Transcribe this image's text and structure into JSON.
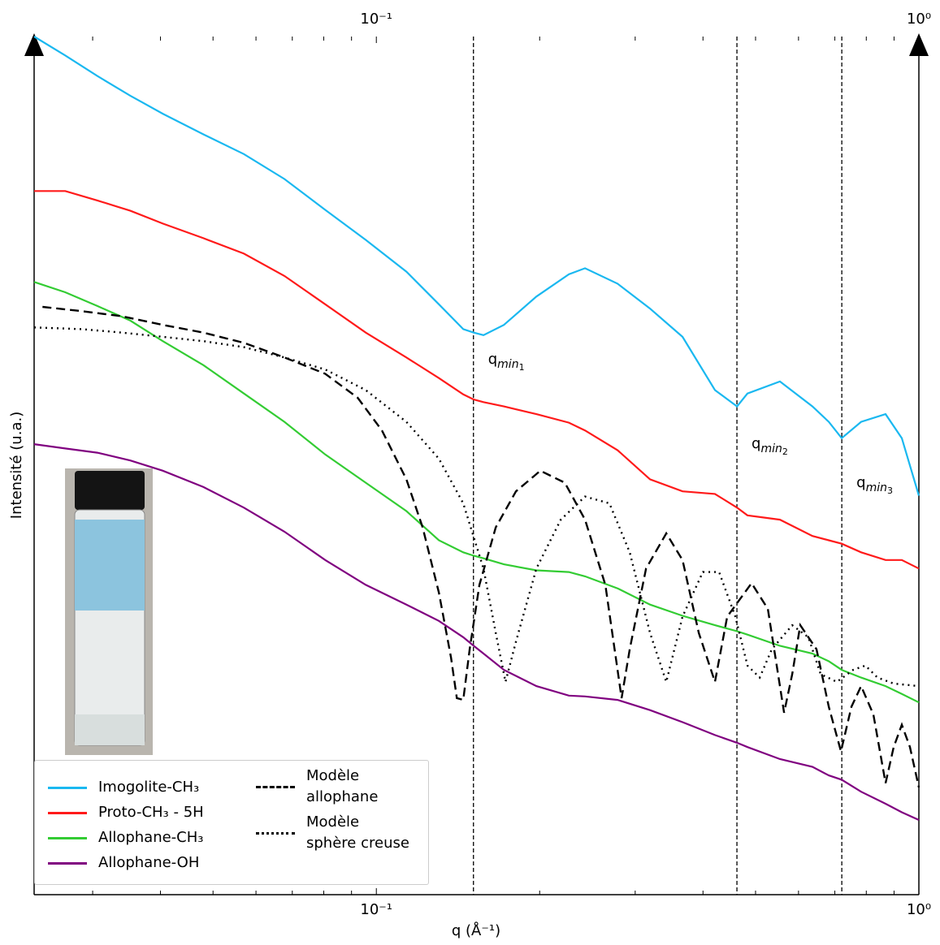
{
  "chart_data": {
    "type": "line",
    "xlabel": "q (Å⁻¹)",
    "ylabel": "Intensité (u.a.)",
    "xscale": "log",
    "xlim": [
      0.0234,
      1.0
    ],
    "ylim": [
      0,
      100
    ],
    "xticks": [
      {
        "value": 0.1,
        "label": "10⁻¹"
      },
      {
        "value": 1.0,
        "label": "10⁰"
      }
    ],
    "xminorticks": [
      0.03,
      0.04,
      0.05,
      0.06,
      0.07,
      0.08,
      0.09,
      0.2,
      0.3,
      0.4,
      0.5,
      0.6,
      0.7,
      0.8,
      0.9
    ],
    "x": [
      0.0234,
      0.0267,
      0.0306,
      0.0352,
      0.0404,
      0.048,
      0.057,
      0.0677,
      0.0805,
      0.0956,
      0.1136,
      0.1304,
      0.1446,
      0.1512,
      0.1576,
      0.1718,
      0.1972,
      0.2264,
      0.2425,
      0.2783,
      0.3195,
      0.3667,
      0.4209,
      0.4622,
      0.4831,
      0.5546,
      0.6366,
      0.6823,
      0.7207,
      0.7826,
      0.8683,
      0.9303,
      1.0
    ],
    "series": [
      {
        "name": "Imogolite-CH₃",
        "color": "#1ab8f0",
        "dash": "solid",
        "values": [
          100.0,
          97.8,
          95.4,
          93.1,
          91.0,
          88.6,
          86.3,
          83.4,
          79.8,
          76.3,
          72.6,
          68.8,
          65.9,
          65.5,
          65.2,
          66.4,
          69.7,
          72.3,
          73.0,
          71.2,
          68.3,
          65.0,
          58.8,
          56.9,
          58.4,
          59.8,
          56.9,
          55.1,
          53.2,
          55.1,
          56.0,
          53.2,
          46.5
        ]
      },
      {
        "name": "Proto-CH₃ - 5H",
        "color": "#ff1a1a",
        "dash": "solid",
        "values": [
          82.0,
          82.0,
          80.9,
          79.7,
          78.2,
          76.5,
          74.7,
          72.1,
          68.8,
          65.5,
          62.6,
          60.2,
          58.3,
          57.7,
          57.4,
          56.9,
          56.0,
          55.0,
          54.1,
          51.8,
          48.4,
          47.0,
          46.7,
          45.1,
          44.2,
          43.7,
          41.8,
          41.3,
          40.9,
          39.9,
          39.0,
          39.0,
          38.0
        ]
      },
      {
        "name": "Allophane-CH₃",
        "color": "#33cc33",
        "dash": "solid",
        "values": [
          71.4,
          70.2,
          68.6,
          66.9,
          64.5,
          61.7,
          58.4,
          55.1,
          51.3,
          48.0,
          44.7,
          41.3,
          39.9,
          39.5,
          39.2,
          38.5,
          37.8,
          37.6,
          37.1,
          35.7,
          33.8,
          32.5,
          31.4,
          30.7,
          30.3,
          29.0,
          28.1,
          27.2,
          26.2,
          25.3,
          24.3,
          23.4,
          22.4
        ]
      },
      {
        "name": "Allophane-OH",
        "color": "#800080",
        "dash": "solid",
        "values": [
          52.5,
          52.0,
          51.5,
          50.6,
          49.4,
          47.5,
          45.1,
          42.3,
          39.0,
          36.1,
          33.8,
          31.9,
          30.0,
          29.0,
          28.1,
          26.2,
          24.3,
          23.2,
          23.1,
          22.7,
          21.5,
          20.1,
          18.6,
          17.7,
          17.2,
          15.8,
          14.9,
          13.9,
          13.4,
          12.0,
          10.6,
          9.6,
          8.7
        ]
      },
      {
        "name": "Modèle\nallophane",
        "color": "#000000",
        "dash": "dashed",
        "x": [
          0.02425,
          0.02862,
          0.034,
          0.0404,
          0.048,
          0.057,
          0.0677,
          0.0805,
          0.0924,
          0.1024,
          0.1136,
          0.1217,
          0.1304,
          0.1373,
          0.1407,
          0.1446,
          0.1486,
          0.1549,
          0.166,
          0.1809,
          0.2006,
          0.2225,
          0.2425,
          0.2643,
          0.2832,
          0.2931,
          0.3141,
          0.3423,
          0.3667,
          0.3929,
          0.4209,
          0.4434,
          0.4917,
          0.5268,
          0.5643,
          0.5841,
          0.6045,
          0.6477,
          0.6823,
          0.7184,
          0.7512,
          0.7826,
          0.8245,
          0.8683,
          0.8987,
          0.9303,
          0.9627,
          1.0
        ],
        "values": [
          68.5,
          68.0,
          67.4,
          66.4,
          65.5,
          64.3,
          62.6,
          60.7,
          57.9,
          54.1,
          48.4,
          42.8,
          35.2,
          27.6,
          22.9,
          22.7,
          28.6,
          36.1,
          42.8,
          47.0,
          49.4,
          48.0,
          43.7,
          36.1,
          22.9,
          28.6,
          38.0,
          42.1,
          39.0,
          30.5,
          24.8,
          32.4,
          36.3,
          33.3,
          21.2,
          25.7,
          31.4,
          28.6,
          21.9,
          16.7,
          21.9,
          24.3,
          21.0,
          13.0,
          17.2,
          19.8,
          17.2,
          12.5
        ]
      },
      {
        "name": "Modèle\nsphère creuse",
        "color": "#000000",
        "dash": "dotted",
        "x": [
          0.0234,
          0.0286,
          0.034,
          0.0404,
          0.048,
          0.057,
          0.0677,
          0.0805,
          0.0956,
          0.1136,
          0.1304,
          0.1446,
          0.1576,
          0.166,
          0.173,
          0.1809,
          0.1972,
          0.2187,
          0.2425,
          0.2689,
          0.2931,
          0.3195,
          0.3423,
          0.3667,
          0.3998,
          0.4283,
          0.4589,
          0.4831,
          0.5089,
          0.5358,
          0.5841,
          0.6257,
          0.659,
          0.7061,
          0.7565,
          0.7969,
          0.8387,
          0.8987,
          1.0
        ],
        "values": [
          66.1,
          65.9,
          65.5,
          65.0,
          64.5,
          63.8,
          62.6,
          61.2,
          58.8,
          55.1,
          50.8,
          45.6,
          38.0,
          30.5,
          24.8,
          29.5,
          38.0,
          43.7,
          46.4,
          45.6,
          39.9,
          30.5,
          24.8,
          32.4,
          37.6,
          37.6,
          32.4,
          26.7,
          25.3,
          28.6,
          31.4,
          30.0,
          25.7,
          24.8,
          26.2,
          26.7,
          25.3,
          24.6,
          24.3
        ]
      }
    ],
    "annotations": [
      {
        "x": 0.151,
        "text": "q",
        "sub": "min",
        "index": "1"
      },
      {
        "x": 0.462,
        "text": "q",
        "sub": "min",
        "index": "2"
      },
      {
        "x": 0.721,
        "text": "q",
        "sub": "min",
        "index": "3"
      }
    ],
    "legend": "lower left"
  }
}
